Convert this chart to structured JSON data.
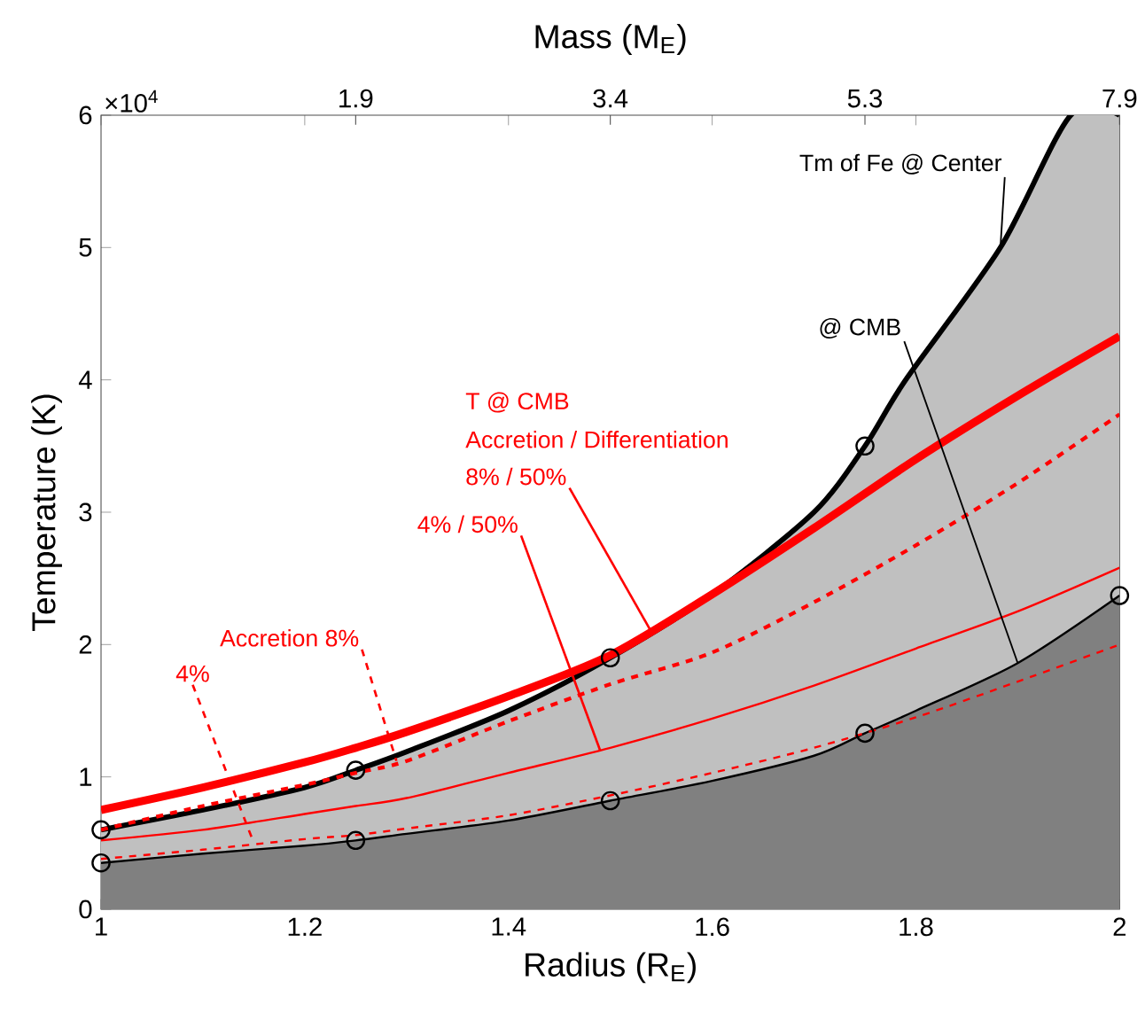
{
  "chart_data": {
    "type": "line",
    "xlabel": "Radius (R$_{E}$)",
    "ylabel": "Temperature (K)",
    "x2label": "Mass (M$_{E}$)",
    "xlim": [
      1,
      2
    ],
    "xticks": [
      1,
      1.2,
      1.4,
      1.6,
      1.8,
      2
    ],
    "ylim": [
      0,
      6
    ],
    "yticks": [
      0,
      1,
      2,
      3,
      4,
      5,
      6
    ],
    "grid": false,
    "series": [
      {
        "type": "area",
        "color": "#c0c0c0",
        "x": [
          1,
          1.1,
          1.2,
          1.25,
          1.3,
          1.4,
          1.5,
          1.6,
          1.7,
          1.75,
          1.79,
          1.883,
          1.952,
          2
        ],
        "values": [
          0.6,
          0.75,
          0.92,
          1.05,
          1.19,
          1.5,
          1.9,
          2.38,
          3.0,
          3.5,
          4.0,
          5.0,
          6.0,
          6.0
        ]
      },
      {
        "type": "area",
        "color": "#808080",
        "x": [
          1,
          1.1,
          1.2,
          1.25,
          1.3,
          1.4,
          1.5,
          1.6,
          1.7,
          1.75,
          1.8,
          1.9,
          2
        ],
        "values": [
          0.35,
          0.42,
          0.48,
          0.52,
          0.57,
          0.67,
          0.82,
          0.97,
          1.16,
          1.33,
          1.5,
          1.86,
          2.37
        ]
      },
      {
        "color": "#ff0000",
        "line_style": "solid",
        "x": [
          1,
          1.1,
          1.2,
          1.25,
          1.3,
          1.4,
          1.5,
          1.6,
          1.7,
          1.8,
          1.9,
          2
        ],
        "values": [
          0.75,
          0.92,
          1.11,
          1.22,
          1.34,
          1.61,
          1.92,
          2.38,
          2.88,
          3.4,
          3.88,
          4.33
        ]
      },
      {
        "color": "#ff0000",
        "line_style": "dashed",
        "x": [
          1,
          1.1,
          1.2,
          1.25,
          1.3,
          1.4,
          1.5,
          1.6,
          1.7,
          1.8,
          1.9,
          2
        ],
        "values": [
          0.6,
          0.78,
          0.94,
          1.03,
          1.12,
          1.42,
          1.7,
          1.94,
          2.32,
          2.75,
          3.22,
          3.74
        ]
      },
      {
        "color": "#ff0000",
        "line_style": "solid",
        "x": [
          1,
          1.1,
          1.2,
          1.25,
          1.3,
          1.4,
          1.5,
          1.6,
          1.7,
          1.8,
          1.9,
          2
        ],
        "values": [
          0.52,
          0.6,
          0.72,
          0.78,
          0.84,
          1.03,
          1.22,
          1.44,
          1.69,
          1.97,
          2.25,
          2.58
        ]
      },
      {
        "color": "#ff0000",
        "line_style": "dashed",
        "x": [
          1,
          1.1,
          1.2,
          1.25,
          1.3,
          1.4,
          1.5,
          1.6,
          1.7,
          1.8,
          1.9,
          2
        ],
        "values": [
          0.38,
          0.45,
          0.53,
          0.56,
          0.61,
          0.71,
          0.86,
          1.03,
          1.22,
          1.45,
          1.72,
          2.0
        ]
      },
      {
        "type": "scatter",
        "color": "#000000",
        "marker": "circle",
        "x": [
          1,
          1.25,
          1.5,
          1.75
        ],
        "values": [
          0.6,
          1.05,
          1.9,
          3.5
        ]
      },
      {
        "type": "scatter",
        "color": "#000000",
        "marker": "circle",
        "x": [
          1,
          1.25,
          1.5,
          1.75,
          2
        ],
        "values": [
          0.35,
          0.52,
          0.82,
          1.33,
          2.37
        ]
      }
    ],
    "annotations": [
      {
        "text": "Tm of Fe @ Center",
        "x": 1.883,
        "y": 5.0
      },
      {
        "text": "@ CMB",
        "x": 1.9,
        "y": 1.86
      },
      "T @ CMB",
      "Accretion / Differentiation",
      {
        "text": "8% / 50%",
        "x": 1.54,
        "y": 2.1
      },
      {
        "text": "4% / 50%",
        "x": 1.49,
        "y": 1.2
      },
      {
        "text": "Accretion 8%",
        "x": 1.29,
        "y": 1.12
      },
      {
        "text": "4%",
        "x": 1.15,
        "y": 0.5
      },
      "×10$^{4}$",
      "1.9",
      "3.4",
      "5.3",
      "7.9"
    ]
  }
}
